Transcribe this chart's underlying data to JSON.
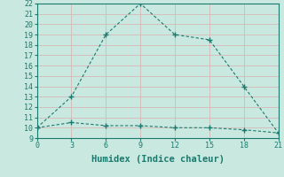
{
  "line1_x": [
    0,
    3,
    6,
    9,
    12,
    15,
    18,
    21
  ],
  "line1_y": [
    10,
    13,
    19,
    22,
    19,
    18.5,
    14,
    9.5
  ],
  "line2_x": [
    0,
    3,
    6,
    9,
    12,
    15,
    18,
    21
  ],
  "line2_y": [
    10,
    10.5,
    10.2,
    10.2,
    10,
    10,
    9.8,
    9.5
  ],
  "line_color": "#1a7a6e",
  "bg_color": "#c8e8e0",
  "grid_color": "#d4b8b8",
  "xlabel": "Humidex (Indice chaleur)",
  "xlim": [
    0,
    21
  ],
  "ylim": [
    9,
    22
  ],
  "xticks": [
    0,
    3,
    6,
    9,
    12,
    15,
    18,
    21
  ],
  "yticks": [
    9,
    10,
    11,
    12,
    13,
    14,
    15,
    16,
    17,
    18,
    19,
    20,
    21,
    22
  ],
  "tick_fontsize": 6,
  "label_fontsize": 7.5
}
